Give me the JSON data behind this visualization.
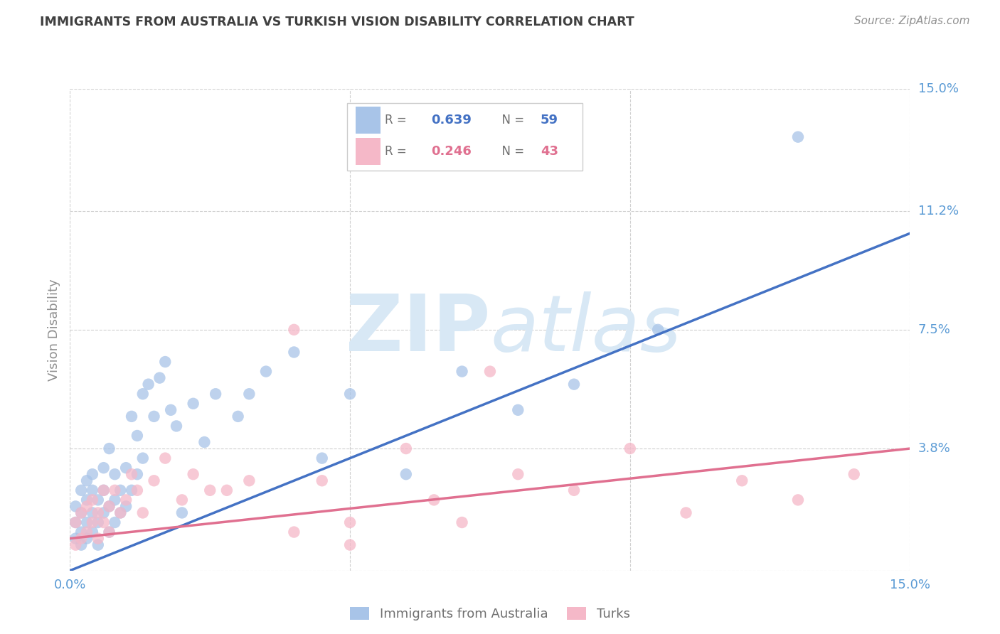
{
  "title": "IMMIGRANTS FROM AUSTRALIA VS TURKISH VISION DISABILITY CORRELATION CHART",
  "source": "Source: ZipAtlas.com",
  "ylabel": "Vision Disability",
  "xlim": [
    0.0,
    0.15
  ],
  "ylim": [
    0.0,
    0.15
  ],
  "ytick_positions": [
    0.0,
    0.038,
    0.075,
    0.112,
    0.15
  ],
  "ytick_labels": [
    "",
    "3.8%",
    "7.5%",
    "11.2%",
    "15.0%"
  ],
  "blue_label": "Immigrants from Australia",
  "pink_label": "Turks",
  "blue_R": "0.639",
  "blue_N": "59",
  "pink_R": "0.246",
  "pink_N": "43",
  "blue_color": "#a8c4e8",
  "pink_color": "#f5b8c8",
  "blue_line_color": "#4472c4",
  "pink_line_color": "#e07090",
  "title_color": "#404040",
  "axis_color": "#5b9bd5",
  "watermark_color": "#d8e8f5",
  "background_color": "#ffffff",
  "grid_color": "#d0d0d0",
  "blue_line_x0": 0.0,
  "blue_line_y0": 0.0,
  "blue_line_x1": 0.15,
  "blue_line_y1": 0.105,
  "pink_line_x0": 0.0,
  "pink_line_y0": 0.01,
  "pink_line_x1": 0.15,
  "pink_line_y1": 0.038,
  "blue_scatter_x": [
    0.001,
    0.001,
    0.001,
    0.002,
    0.002,
    0.002,
    0.002,
    0.003,
    0.003,
    0.003,
    0.003,
    0.004,
    0.004,
    0.004,
    0.004,
    0.005,
    0.005,
    0.005,
    0.006,
    0.006,
    0.006,
    0.007,
    0.007,
    0.007,
    0.008,
    0.008,
    0.008,
    0.009,
    0.009,
    0.01,
    0.01,
    0.011,
    0.011,
    0.012,
    0.012,
    0.013,
    0.013,
    0.014,
    0.015,
    0.016,
    0.017,
    0.018,
    0.019,
    0.02,
    0.022,
    0.024,
    0.026,
    0.03,
    0.032,
    0.035,
    0.04,
    0.045,
    0.05,
    0.06,
    0.07,
    0.08,
    0.09,
    0.105,
    0.13
  ],
  "blue_scatter_y": [
    0.01,
    0.015,
    0.02,
    0.008,
    0.012,
    0.018,
    0.025,
    0.01,
    0.015,
    0.022,
    0.028,
    0.012,
    0.018,
    0.025,
    0.03,
    0.015,
    0.022,
    0.008,
    0.018,
    0.025,
    0.032,
    0.012,
    0.02,
    0.038,
    0.015,
    0.022,
    0.03,
    0.018,
    0.025,
    0.02,
    0.032,
    0.048,
    0.025,
    0.042,
    0.03,
    0.035,
    0.055,
    0.058,
    0.048,
    0.06,
    0.065,
    0.05,
    0.045,
    0.018,
    0.052,
    0.04,
    0.055,
    0.048,
    0.055,
    0.062,
    0.068,
    0.035,
    0.055,
    0.03,
    0.062,
    0.05,
    0.058,
    0.075,
    0.135
  ],
  "pink_scatter_x": [
    0.001,
    0.001,
    0.002,
    0.002,
    0.003,
    0.003,
    0.004,
    0.004,
    0.005,
    0.005,
    0.006,
    0.006,
    0.007,
    0.007,
    0.008,
    0.009,
    0.01,
    0.011,
    0.012,
    0.013,
    0.015,
    0.017,
    0.02,
    0.022,
    0.025,
    0.028,
    0.032,
    0.04,
    0.045,
    0.05,
    0.06,
    0.065,
    0.07,
    0.075,
    0.08,
    0.09,
    0.1,
    0.11,
    0.12,
    0.13,
    0.14,
    0.04,
    0.05
  ],
  "pink_scatter_y": [
    0.008,
    0.015,
    0.01,
    0.018,
    0.012,
    0.02,
    0.015,
    0.022,
    0.01,
    0.018,
    0.015,
    0.025,
    0.012,
    0.02,
    0.025,
    0.018,
    0.022,
    0.03,
    0.025,
    0.018,
    0.028,
    0.035,
    0.022,
    0.03,
    0.025,
    0.025,
    0.028,
    0.012,
    0.028,
    0.015,
    0.038,
    0.022,
    0.015,
    0.062,
    0.03,
    0.025,
    0.038,
    0.018,
    0.028,
    0.022,
    0.03,
    0.075,
    0.008
  ]
}
